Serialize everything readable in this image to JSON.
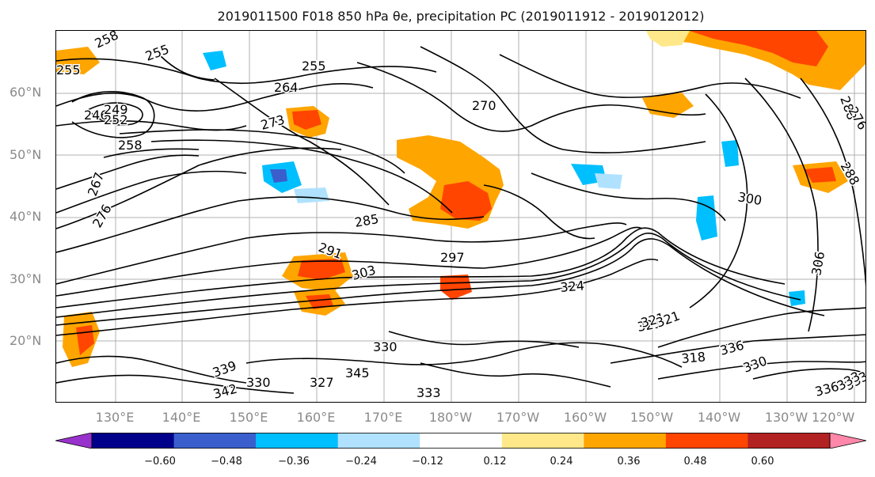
{
  "title": "2019011500 F018 850 hPa θe, precipitation PC (2019011912 - 2019012012)",
  "lat_labels": [
    "20°N",
    "30°N",
    "40°N",
    "50°N",
    "60°N"
  ],
  "lon_labels": [
    "130°E",
    "140°E",
    "150°E",
    "160°E",
    "170°E",
    "180°W",
    "170°W",
    "160°W",
    "150°W",
    "140°W",
    "130°W",
    "120°W"
  ],
  "colorbar": {
    "ticks": [
      "−0.60",
      "−0.48",
      "−0.36",
      "−0.24",
      "−0.12",
      "0.12",
      "0.24",
      "0.36",
      "0.48",
      "0.60"
    ],
    "colors": [
      "#9932cc",
      "#00008b",
      "#3a5fcd",
      "#00bfff",
      "#b0e2ff",
      "#ffffff",
      "#ffe88a",
      "#ffa500",
      "#ff4500",
      "#b22222",
      "#ff88aa"
    ]
  },
  "contour_labels": [
    "258",
    "255",
    "255",
    "246",
    "252",
    "249",
    "258",
    "264",
    "255",
    "273",
    "267",
    "276",
    "291",
    "285",
    "297",
    "303",
    "324",
    "300",
    "321",
    "321",
    "333",
    "330",
    "327",
    "342",
    "345",
    "339",
    "330",
    "333",
    "336",
    "318",
    "330",
    "336",
    "333",
    "321",
    "306",
    "288",
    "276",
    "288",
    "270"
  ]
}
